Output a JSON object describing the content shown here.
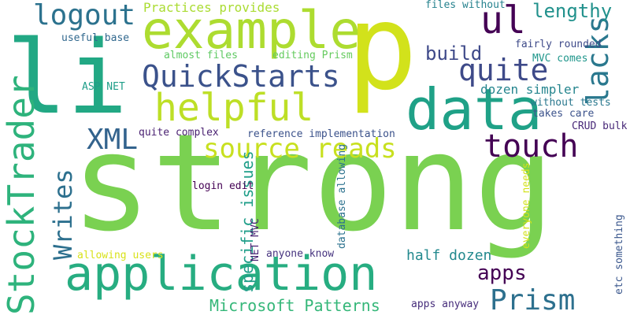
{
  "words": [
    {
      "text": "strong",
      "color": "#7ad151",
      "rotated": false
    },
    {
      "text": "p",
      "color": "#d2e21b",
      "rotated": false
    },
    {
      "text": "li",
      "color": "#22a884",
      "rotated": false
    },
    {
      "text": "example",
      "color": "#addc30",
      "rotated": false
    },
    {
      "text": "data",
      "color": "#1fa187",
      "rotated": false
    },
    {
      "text": "application",
      "color": "#27ad81",
      "rotated": false
    },
    {
      "text": "helpful",
      "color": "#bddf26",
      "rotated": false
    },
    {
      "text": "StockTrader",
      "color": "#2eb37c",
      "rotated": true
    },
    {
      "text": "QuickStarts",
      "color": "#3b528b",
      "rotated": false
    },
    {
      "text": "ul",
      "color": "#440154",
      "rotated": false
    },
    {
      "text": "logout",
      "color": "#2c728e",
      "rotated": false
    },
    {
      "text": "quite",
      "color": "#3e4a89",
      "rotated": false
    },
    {
      "text": "touch",
      "color": "#440154",
      "rotated": false
    },
    {
      "text": "lacks",
      "color": "#2a788e",
      "rotated": true
    },
    {
      "text": "source reads",
      "color": "#c8e020",
      "rotated": false
    },
    {
      "text": "XML",
      "color": "#33638d",
      "rotated": false
    },
    {
      "text": "Writes",
      "color": "#2d708e",
      "rotated": true
    },
    {
      "text": "Prism",
      "color": "#2d708e",
      "rotated": false
    },
    {
      "text": "lengthy",
      "color": "#21918c",
      "rotated": false
    },
    {
      "text": "build",
      "color": "#3e4989",
      "rotated": false
    },
    {
      "text": "apps",
      "color": "#440154",
      "rotated": false
    },
    {
      "text": "Microsoft Patterns",
      "color": "#35b779",
      "rotated": false
    },
    {
      "text": "specific issues",
      "color": "#1f9e89",
      "rotated": true
    },
    {
      "text": "half dozen",
      "color": "#23898e",
      "rotated": false
    },
    {
      "text": "dozen simpler",
      "color": "#25858e",
      "rotated": false
    },
    {
      "text": "Practices provides",
      "color": "#aadc32",
      "rotated": false
    },
    {
      "text": "files without",
      "color": "#26828e",
      "rotated": false
    },
    {
      "text": "fairly rounded",
      "color": "#3e4a89",
      "rotated": false
    },
    {
      "text": "MVC comes",
      "color": "#1f968b",
      "rotated": false
    },
    {
      "text": "without tests",
      "color": "#2a788e",
      "rotated": false
    },
    {
      "text": "takes care",
      "color": "#3b528b",
      "rotated": false
    },
    {
      "text": "CRUD bulk",
      "color": "#482878",
      "rotated": false
    },
    {
      "text": "useful base",
      "color": "#31688e",
      "rotated": false
    },
    {
      "text": "almost files",
      "color": "#5ec962",
      "rotated": false
    },
    {
      "text": "editing Prism",
      "color": "#65cb5e",
      "rotated": false
    },
    {
      "text": "ASP NET",
      "color": "#1f9e89",
      "rotated": false
    },
    {
      "text": "reference implementation",
      "color": "#3b528b",
      "rotated": false
    },
    {
      "text": "quite complex",
      "color": "#481f70",
      "rotated": false
    },
    {
      "text": "login edit",
      "color": "#440154",
      "rotated": false
    },
    {
      "text": "database allowing",
      "color": "#2c728e",
      "rotated": true
    },
    {
      "text": "NET MVC",
      "color": "#482173",
      "rotated": true
    },
    {
      "text": "anyone know",
      "color": "#46337f",
      "rotated": false
    },
    {
      "text": "allowing users",
      "color": "#d8e219",
      "rotated": false
    },
    {
      "text": "everyone needs",
      "color": "#d2e21b",
      "rotated": true
    },
    {
      "text": "etc something",
      "color": "#39568c",
      "rotated": true
    },
    {
      "text": "apps anyway",
      "color": "#472d7b",
      "rotated": false
    }
  ]
}
